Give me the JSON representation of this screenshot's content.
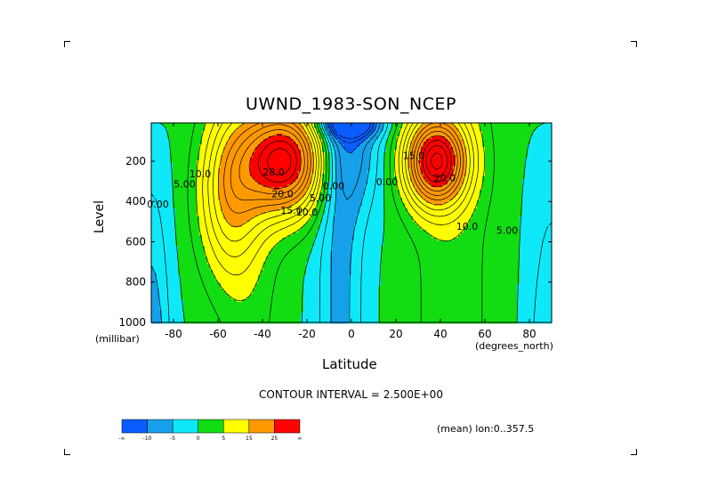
{
  "chart_data": {
    "type": "contour",
    "title": "UWND_1983-SON_NCEP",
    "xlabel": "Latitude",
    "ylabel": "Level",
    "x_unit": "(degrees_north)",
    "y_unit": "(millibar)",
    "xlim": [
      -90,
      90
    ],
    "ylim": [
      1000,
      10
    ],
    "x_ticks": [
      -80,
      -60,
      -40,
      -20,
      0,
      20,
      40,
      60,
      80
    ],
    "y_ticks": [
      200,
      400,
      600,
      800,
      1000
    ],
    "contour_interval_text": "CONTOUR INTERVAL = 2.500E+00",
    "contour_labels": [
      {
        "text": "28.0",
        "lat": -35,
        "lev": 270
      },
      {
        "text": "20.0",
        "lat": -31,
        "lev": 380
      },
      {
        "text": "15.0",
        "lat": -27,
        "lev": 460
      },
      {
        "text": "10.0",
        "lat": -20,
        "lev": 470
      },
      {
        "text": "5.00",
        "lat": -14,
        "lev": 400
      },
      {
        "text": "0.00",
        "lat": -8,
        "lev": 340
      },
      {
        "text": "10.0",
        "lat": -68,
        "lev": 280
      },
      {
        "text": "5.00",
        "lat": -75,
        "lev": 330
      },
      {
        "text": "0.00",
        "lat": -87,
        "lev": 430
      },
      {
        "text": "0.00",
        "lat": 16,
        "lev": 320
      },
      {
        "text": "15.0",
        "lat": 28,
        "lev": 190
      },
      {
        "text": "20.0",
        "lat": 42,
        "lev": 300
      },
      {
        "text": "10.0",
        "lat": 52,
        "lev": 540
      },
      {
        "text": "5.00",
        "lat": 70,
        "lev": 560
      }
    ],
    "jets": [
      {
        "name": "southern_jet",
        "lat": -30,
        "lev": 200,
        "max": 30
      },
      {
        "name": "northern_jet",
        "lat": 38,
        "lev": 200,
        "max": 30
      }
    ],
    "colorbar": {
      "colors": [
        "#0a5cff",
        "#17a0ea",
        "#0fe8f8",
        "#12dc12",
        "#ffff00",
        "#ff9900",
        "#ff0000"
      ],
      "labels": [
        "-∞",
        "-10",
        "-5",
        "0",
        "5",
        "15",
        "25",
        "∞"
      ]
    },
    "annotation": "(mean) lon:0..357.5"
  }
}
